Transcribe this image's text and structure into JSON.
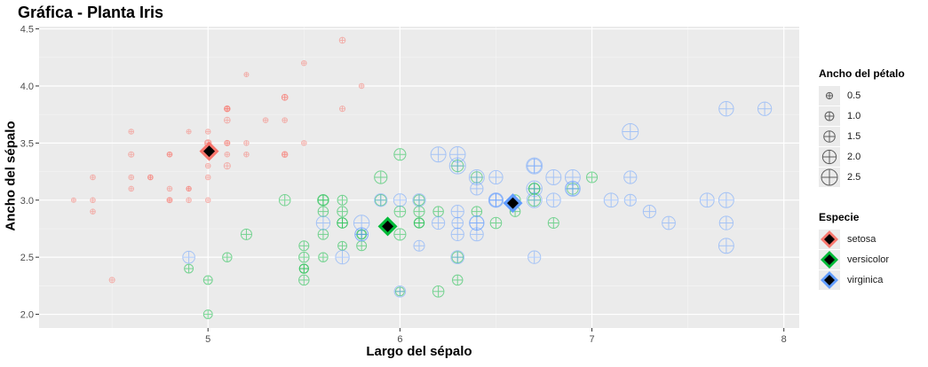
{
  "chart_data": {
    "type": "scatter",
    "title": "Gráfica - Planta Iris",
    "xlabel": "Largo del sépalo",
    "ylabel": "Ancho del sépalo",
    "xlim": [
      4.12,
      8.08
    ],
    "ylim": [
      1.88,
      4.52
    ],
    "x_ticks": [
      5,
      6,
      7,
      8
    ],
    "x_tick_labels": [
      "5",
      "6",
      "7",
      "8"
    ],
    "y_ticks": [
      2.0,
      2.5,
      3.0,
      3.5,
      4.0,
      4.5
    ],
    "y_tick_labels": [
      "2.0",
      "2.5",
      "3.0",
      "3.5",
      "4.0",
      "4.5"
    ],
    "grid": true,
    "point_shape": "circle-plus",
    "colors": {
      "setosa": "#F8766D",
      "versicolor": "#00BA38",
      "virginica": "#619CFF"
    },
    "series": [
      {
        "name": "setosa",
        "points": [
          [
            5.1,
            3.5,
            0.2
          ],
          [
            4.9,
            3.0,
            0.2
          ],
          [
            4.7,
            3.2,
            0.2
          ],
          [
            4.6,
            3.1,
            0.2
          ],
          [
            5.0,
            3.6,
            0.2
          ],
          [
            5.4,
            3.9,
            0.4
          ],
          [
            4.6,
            3.4,
            0.3
          ],
          [
            5.0,
            3.4,
            0.2
          ],
          [
            4.4,
            2.9,
            0.2
          ],
          [
            4.9,
            3.1,
            0.1
          ],
          [
            5.4,
            3.7,
            0.2
          ],
          [
            4.8,
            3.4,
            0.2
          ],
          [
            4.8,
            3.0,
            0.1
          ],
          [
            4.3,
            3.0,
            0.1
          ],
          [
            5.8,
            4.0,
            0.2
          ],
          [
            5.7,
            4.4,
            0.4
          ],
          [
            5.4,
            3.9,
            0.4
          ],
          [
            5.1,
            3.5,
            0.3
          ],
          [
            5.7,
            3.8,
            0.3
          ],
          [
            5.1,
            3.8,
            0.3
          ],
          [
            5.4,
            3.4,
            0.2
          ],
          [
            5.1,
            3.7,
            0.4
          ],
          [
            4.6,
            3.6,
            0.2
          ],
          [
            5.1,
            3.3,
            0.5
          ],
          [
            4.8,
            3.4,
            0.2
          ],
          [
            5.0,
            3.0,
            0.2
          ],
          [
            5.0,
            3.4,
            0.4
          ],
          [
            5.2,
            3.5,
            0.2
          ],
          [
            5.2,
            3.4,
            0.2
          ],
          [
            4.7,
            3.2,
            0.2
          ],
          [
            4.8,
            3.1,
            0.2
          ],
          [
            5.4,
            3.4,
            0.4
          ],
          [
            5.2,
            4.1,
            0.1
          ],
          [
            5.5,
            4.2,
            0.2
          ],
          [
            4.9,
            3.1,
            0.2
          ],
          [
            5.0,
            3.2,
            0.2
          ],
          [
            5.5,
            3.5,
            0.2
          ],
          [
            4.9,
            3.6,
            0.1
          ],
          [
            4.4,
            3.0,
            0.2
          ],
          [
            5.1,
            3.4,
            0.2
          ],
          [
            5.0,
            3.5,
            0.3
          ],
          [
            4.5,
            2.3,
            0.3
          ],
          [
            4.4,
            3.2,
            0.2
          ],
          [
            5.0,
            3.5,
            0.6
          ],
          [
            5.1,
            3.8,
            0.4
          ],
          [
            4.8,
            3.0,
            0.3
          ],
          [
            5.1,
            3.8,
            0.2
          ],
          [
            4.6,
            3.2,
            0.2
          ],
          [
            5.3,
            3.7,
            0.2
          ],
          [
            5.0,
            3.3,
            0.2
          ]
        ]
      },
      {
        "name": "versicolor",
        "points": [
          [
            7.0,
            3.2,
            1.4
          ],
          [
            6.4,
            3.2,
            1.5
          ],
          [
            6.9,
            3.1,
            1.5
          ],
          [
            5.5,
            2.3,
            1.3
          ],
          [
            6.5,
            2.8,
            1.5
          ],
          [
            5.7,
            2.8,
            1.3
          ],
          [
            6.3,
            3.3,
            1.6
          ],
          [
            4.9,
            2.4,
            1.0
          ],
          [
            6.6,
            2.9,
            1.3
          ],
          [
            5.2,
            2.7,
            1.4
          ],
          [
            5.0,
            2.0,
            1.0
          ],
          [
            5.9,
            3.0,
            1.5
          ],
          [
            6.0,
            2.2,
            1.0
          ],
          [
            6.1,
            2.9,
            1.4
          ],
          [
            5.6,
            2.9,
            1.3
          ],
          [
            6.7,
            3.1,
            1.4
          ],
          [
            5.6,
            3.0,
            1.5
          ],
          [
            5.8,
            2.7,
            1.0
          ],
          [
            6.2,
            2.2,
            1.5
          ],
          [
            5.6,
            2.5,
            1.1
          ],
          [
            5.9,
            3.2,
            1.8
          ],
          [
            6.1,
            2.8,
            1.3
          ],
          [
            6.3,
            2.5,
            1.5
          ],
          [
            6.1,
            2.8,
            1.2
          ],
          [
            6.4,
            2.9,
            1.3
          ],
          [
            6.6,
            3.0,
            1.4
          ],
          [
            6.8,
            2.8,
            1.4
          ],
          [
            6.7,
            3.0,
            1.7
          ],
          [
            6.0,
            2.9,
            1.5
          ],
          [
            5.7,
            2.6,
            1.0
          ],
          [
            5.5,
            2.4,
            1.1
          ],
          [
            5.5,
            2.4,
            1.0
          ],
          [
            5.8,
            2.7,
            1.2
          ],
          [
            6.0,
            2.7,
            1.6
          ],
          [
            5.4,
            3.0,
            1.5
          ],
          [
            6.0,
            3.4,
            1.6
          ],
          [
            6.7,
            3.1,
            1.5
          ],
          [
            6.3,
            2.3,
            1.3
          ],
          [
            5.6,
            3.0,
            1.3
          ],
          [
            5.5,
            2.5,
            1.3
          ],
          [
            5.5,
            2.6,
            1.2
          ],
          [
            6.1,
            3.0,
            1.4
          ],
          [
            5.8,
            2.6,
            1.2
          ],
          [
            5.0,
            2.3,
            1.0
          ],
          [
            5.6,
            2.7,
            1.3
          ],
          [
            5.7,
            3.0,
            1.2
          ],
          [
            5.7,
            2.9,
            1.3
          ],
          [
            6.2,
            2.9,
            1.3
          ],
          [
            5.1,
            2.5,
            1.1
          ],
          [
            5.7,
            2.8,
            1.3
          ]
        ]
      },
      {
        "name": "virginica",
        "points": [
          [
            6.3,
            3.3,
            2.5
          ],
          [
            5.8,
            2.7,
            1.9
          ],
          [
            7.1,
            3.0,
            2.1
          ],
          [
            6.3,
            2.9,
            1.8
          ],
          [
            6.5,
            3.0,
            2.2
          ],
          [
            7.6,
            3.0,
            2.1
          ],
          [
            4.9,
            2.5,
            1.7
          ],
          [
            7.3,
            2.9,
            1.8
          ],
          [
            6.7,
            2.5,
            1.8
          ],
          [
            7.2,
            3.6,
            2.5
          ],
          [
            6.5,
            3.2,
            2.0
          ],
          [
            6.4,
            2.7,
            1.9
          ],
          [
            6.8,
            3.0,
            2.1
          ],
          [
            5.7,
            2.5,
            2.0
          ],
          [
            5.8,
            2.8,
            2.4
          ],
          [
            6.4,
            3.2,
            2.3
          ],
          [
            6.5,
            3.0,
            1.8
          ],
          [
            7.7,
            3.8,
            2.2
          ],
          [
            7.7,
            2.6,
            2.3
          ],
          [
            6.0,
            2.2,
            1.5
          ],
          [
            6.9,
            3.2,
            2.3
          ],
          [
            5.6,
            2.8,
            2.0
          ],
          [
            7.7,
            2.8,
            2.0
          ],
          [
            6.3,
            2.7,
            1.8
          ],
          [
            6.7,
            3.3,
            2.1
          ],
          [
            7.2,
            3.2,
            1.8
          ],
          [
            6.2,
            2.8,
            1.8
          ],
          [
            6.1,
            3.0,
            1.8
          ],
          [
            6.4,
            2.8,
            2.1
          ],
          [
            7.2,
            3.0,
            1.6
          ],
          [
            7.4,
            2.8,
            1.9
          ],
          [
            7.9,
            3.8,
            2.0
          ],
          [
            6.4,
            2.8,
            2.2
          ],
          [
            6.3,
            2.8,
            1.5
          ],
          [
            6.1,
            2.6,
            1.4
          ],
          [
            7.7,
            3.0,
            2.3
          ],
          [
            6.3,
            3.4,
            2.4
          ],
          [
            6.4,
            3.1,
            1.8
          ],
          [
            6.0,
            3.0,
            1.8
          ],
          [
            6.9,
            3.1,
            2.1
          ],
          [
            6.7,
            3.1,
            2.4
          ],
          [
            6.9,
            3.1,
            2.3
          ],
          [
            5.8,
            2.7,
            1.9
          ],
          [
            6.8,
            3.2,
            2.3
          ],
          [
            6.7,
            3.3,
            2.5
          ],
          [
            6.7,
            3.0,
            2.3
          ],
          [
            6.3,
            2.5,
            1.9
          ],
          [
            6.5,
            3.0,
            2.0
          ],
          [
            6.2,
            3.4,
            2.3
          ],
          [
            5.9,
            3.0,
            1.8
          ]
        ]
      }
    ],
    "means": [
      {
        "name": "setosa",
        "x": 5.006,
        "y": 3.428
      },
      {
        "name": "versicolor",
        "x": 5.936,
        "y": 2.77
      },
      {
        "name": "virginica",
        "x": 6.588,
        "y": 2.974
      }
    ],
    "legend_size": {
      "title": "Ancho del pétalo",
      "labels": [
        "0.5",
        "1.0",
        "1.5",
        "2.0",
        "2.5"
      ],
      "values": [
        0.5,
        1.0,
        1.5,
        2.0,
        2.5
      ],
      "placement": "right"
    },
    "legend_color": {
      "title": "Especie",
      "labels": [
        "setosa",
        "versicolor",
        "virginica"
      ],
      "placement": "right"
    }
  }
}
